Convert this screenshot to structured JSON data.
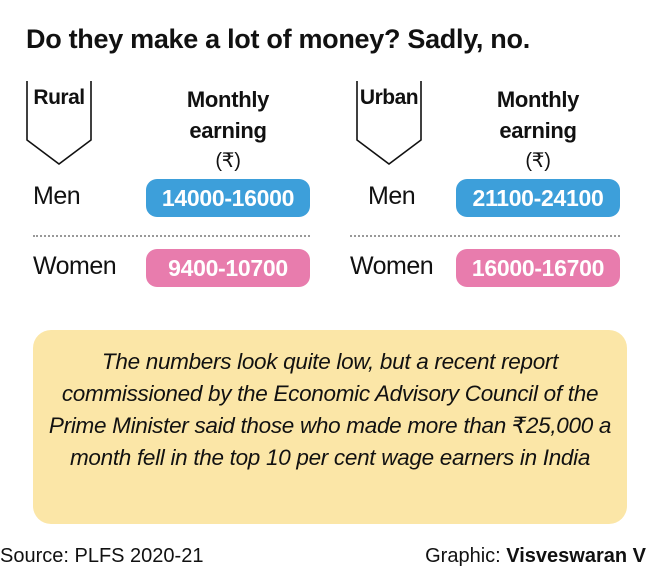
{
  "title": "Do they make a lot of money? Sadly, no.",
  "col_heading": {
    "line1": "Monthly",
    "line2": "earning",
    "unit": "(₹)"
  },
  "rural": {
    "label": "Rural",
    "men_label": "Men",
    "men_value": "14000-16000",
    "women_label": "Women",
    "women_value": "9400-10700"
  },
  "urban": {
    "label": "Urban",
    "men_label": "Men",
    "men_value": "21100-24100",
    "women_label": "Women",
    "women_value": "16000-16700"
  },
  "note": "The numbers look quite low, but a recent report commissioned by the Economic Advisory Council of the Prime Minister said those who made more than ₹25,000 a month fell in the top 10 per cent wage earners in India",
  "footer": {
    "source": "Source: PLFS 2020-21",
    "graphic_prefix": "Graphic:",
    "graphic_author": "Visveswaran V"
  },
  "colors": {
    "men": "#3d9fda",
    "women": "#e87cad",
    "note_bg": "#fbe6a7"
  }
}
